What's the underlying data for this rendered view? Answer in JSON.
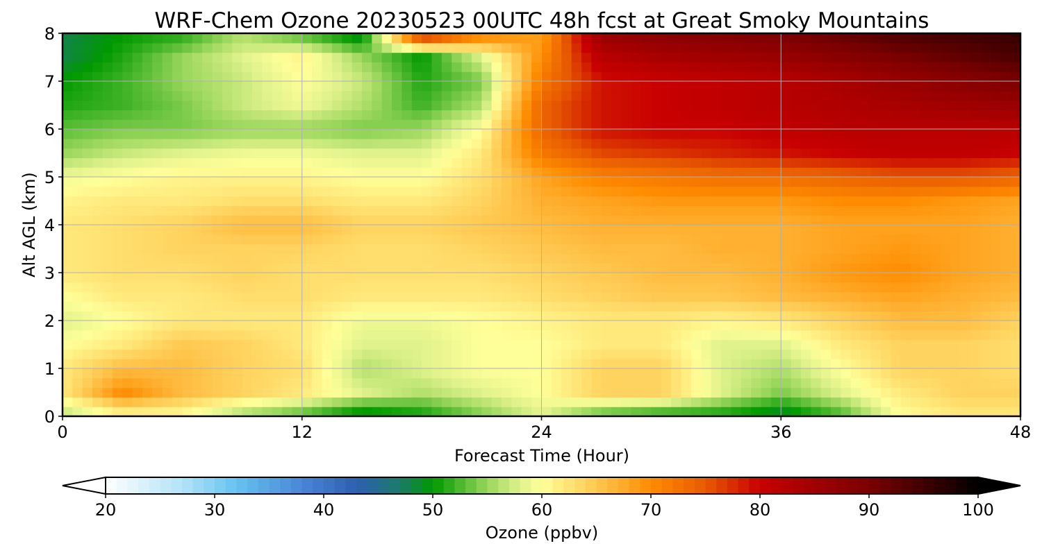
{
  "chart_data": {
    "type": "heatmap",
    "title": "WRF-Chem Ozone  20230523 00UTC 48h fcst at Great Smoky Mountains",
    "xlabel": "Forecast Time (Hour)",
    "ylabel": "Alt AGL (km)",
    "xlim": [
      0,
      48
    ],
    "ylim": [
      0,
      8
    ],
    "x_ticks": [
      "0",
      "12",
      "24",
      "36",
      "48"
    ],
    "y_ticks": [
      "0",
      "1",
      "2",
      "3",
      "4",
      "5",
      "6",
      "7",
      "8"
    ],
    "grid": true,
    "x": [
      0,
      3,
      6,
      9,
      12,
      15,
      18,
      21,
      24,
      27,
      30,
      33,
      36,
      39,
      42,
      45,
      48
    ],
    "y": [
      0,
      0.5,
      1,
      1.5,
      2,
      2.5,
      3,
      3.5,
      4,
      4.5,
      5,
      5.5,
      6,
      6.5,
      7,
      7.5,
      8
    ],
    "z": [
      [
        56,
        60,
        60,
        55,
        52,
        48,
        50,
        54,
        58,
        52,
        50,
        50,
        48,
        52,
        60,
        62,
        62
      ],
      [
        62,
        70,
        66,
        64,
        62,
        58,
        56,
        58,
        60,
        64,
        64,
        58,
        54,
        58,
        62,
        64,
        64
      ],
      [
        62,
        66,
        66,
        64,
        63,
        56,
        58,
        60,
        60,
        64,
        64,
        58,
        56,
        60,
        64,
        64,
        63
      ],
      [
        60,
        62,
        65,
        64,
        62,
        58,
        58,
        60,
        60,
        62,
        62,
        58,
        58,
        62,
        64,
        64,
        63
      ],
      [
        58,
        60,
        62,
        62,
        62,
        59,
        59,
        60,
        61,
        62,
        62,
        61,
        62,
        64,
        66,
        66,
        64
      ],
      [
        60,
        62,
        62,
        63,
        63,
        62,
        62,
        62,
        63,
        64,
        65,
        65,
        66,
        67,
        68,
        67,
        66
      ],
      [
        62,
        63,
        63,
        64,
        63,
        63,
        63,
        63,
        64,
        65,
        66,
        66,
        67,
        69,
        70,
        68,
        67
      ],
      [
        62,
        63,
        64,
        64,
        64,
        63,
        63,
        64,
        65,
        66,
        66,
        67,
        67,
        68,
        69,
        68,
        67
      ],
      [
        62,
        63,
        64,
        66,
        66,
        64,
        64,
        65,
        66,
        67,
        67,
        67,
        67,
        68,
        68,
        68,
        67
      ],
      [
        61,
        62,
        62,
        63,
        63,
        62,
        62,
        64,
        67,
        68,
        69,
        69,
        69,
        70,
        70,
        69,
        68
      ],
      [
        59,
        60,
        61,
        61,
        61,
        60,
        60,
        63,
        68,
        71,
        72,
        73,
        73,
        74,
        75,
        75,
        74
      ],
      [
        55,
        57,
        58,
        59,
        59,
        58,
        58,
        62,
        72,
        76,
        77,
        78,
        79,
        80,
        81,
        81,
        80
      ],
      [
        53,
        54,
        54,
        55,
        55,
        54,
        55,
        60,
        74,
        79,
        80,
        80,
        81,
        82,
        82,
        82,
        82
      ],
      [
        51,
        52,
        54,
        57,
        59,
        56,
        52,
        56,
        74,
        79,
        80,
        81,
        82,
        83,
        84,
        85,
        86
      ],
      [
        50,
        52,
        55,
        57,
        60,
        57,
        51,
        54,
        72,
        79,
        80,
        81,
        82,
        84,
        86,
        88,
        90
      ],
      [
        48,
        51,
        55,
        58,
        61,
        55,
        50,
        58,
        70,
        82,
        84,
        85,
        86,
        88,
        90,
        92,
        94
      ],
      [
        48,
        50,
        51,
        56,
        52,
        48,
        82,
        72,
        68,
        86,
        88,
        89,
        90,
        92,
        94,
        95,
        96
      ]
    ],
    "colorbar": {
      "label": "Ozone  (ppbv)",
      "min": 20,
      "max": 100,
      "ticks": [
        "20",
        "30",
        "40",
        "50",
        "60",
        "70",
        "80",
        "90",
        "100"
      ],
      "extend": "both"
    },
    "colormap": [
      [
        20,
        "#ffffff"
      ],
      [
        27,
        "#b3e3f7"
      ],
      [
        32,
        "#66c2f0"
      ],
      [
        38,
        "#4a86d6"
      ],
      [
        43,
        "#2e5fb0"
      ],
      [
        47,
        "#1a7a6a"
      ],
      [
        50,
        "#009900"
      ],
      [
        55,
        "#99d65c"
      ],
      [
        58,
        "#e0f28c"
      ],
      [
        60,
        "#ffff99"
      ],
      [
        65,
        "#ffc850"
      ],
      [
        70,
        "#ff8c00"
      ],
      [
        75,
        "#e85a00"
      ],
      [
        80,
        "#c80000"
      ],
      [
        85,
        "#a00000"
      ],
      [
        90,
        "#7a0000"
      ],
      [
        95,
        "#400000"
      ],
      [
        100,
        "#000000"
      ]
    ]
  }
}
